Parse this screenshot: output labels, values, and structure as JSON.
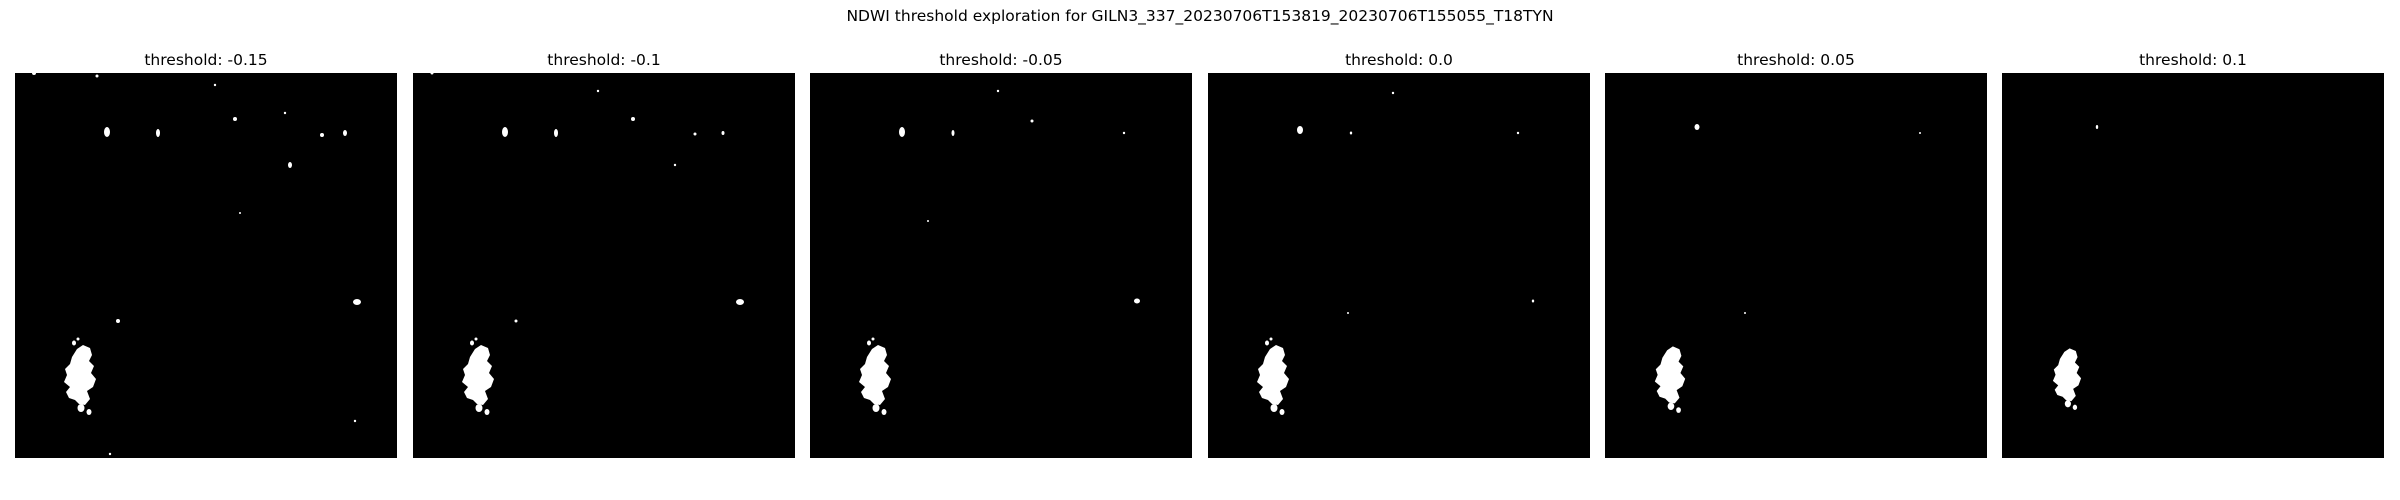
{
  "figure": {
    "suptitle": "NDWI threshold exploration for GILN3_337_20230706T153819_20230706T155055_T18TYN"
  },
  "chart_data": [
    {
      "type": "heatmap",
      "title": "threshold: -0.15",
      "threshold": -0.15,
      "colormap": "binary (water = white, non-water = black)",
      "axes_visible": false
    },
    {
      "type": "heatmap",
      "title": "threshold: -0.1",
      "threshold": -0.1,
      "colormap": "binary (water = white, non-water = black)",
      "axes_visible": false
    },
    {
      "type": "heatmap",
      "title": "threshold: -0.05",
      "threshold": -0.05,
      "colormap": "binary (water = white, non-water = black)",
      "axes_visible": false
    },
    {
      "type": "heatmap",
      "title": "threshold: 0.0",
      "threshold": 0.0,
      "colormap": "binary (water = white, non-water = black)",
      "axes_visible": false
    },
    {
      "type": "heatmap",
      "title": "threshold: 0.05",
      "threshold": 0.05,
      "colormap": "binary (water = white, non-water = black)",
      "axes_visible": false
    },
    {
      "type": "heatmap",
      "title": "threshold: 0.1",
      "threshold": 0.1,
      "colormap": "binary (water = white, non-water = black)",
      "axes_visible": false
    }
  ],
  "colors": {
    "water": "#ffffff",
    "background": "#000000"
  }
}
